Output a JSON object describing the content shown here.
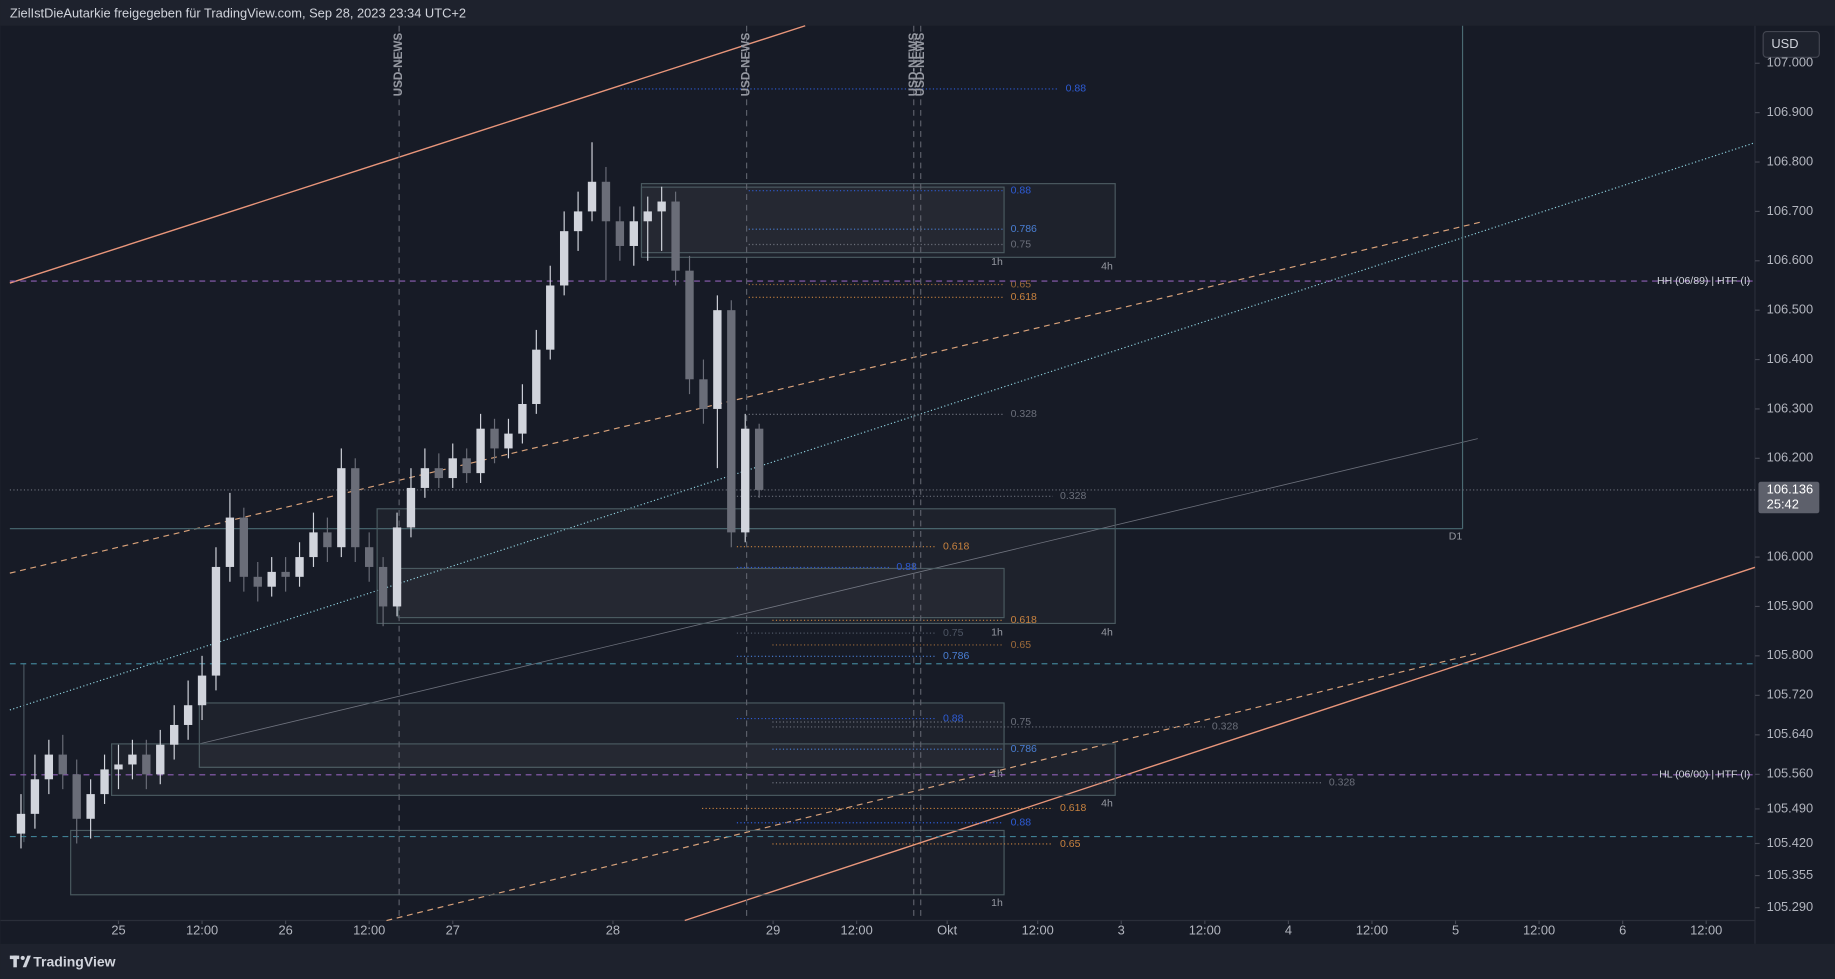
{
  "header": {
    "text": "ZielIstDieAutarkie freigegeben für TradingView.com, Sep 28, 2023 23:34 UTC+2"
  },
  "footer": {
    "brand": "TradingView"
  },
  "currency": "USD",
  "box_labels": [
    "1h",
    "4h",
    "1h",
    "4h",
    "1h",
    "4h",
    "1h",
    "D1"
  ],
  "chart_data": {
    "type": "candlestick",
    "x": [
      10,
      12,
      14,
      16,
      18,
      20,
      22,
      24,
      26,
      28,
      30,
      32,
      34,
      36,
      38,
      40,
      42,
      44,
      46,
      48,
      50,
      52,
      54,
      56,
      58,
      60,
      62,
      64,
      66,
      68,
      70,
      72,
      74,
      76,
      78,
      80,
      82,
      84,
      86,
      88,
      90,
      92,
      94,
      96,
      98,
      100,
      102,
      104,
      106,
      108,
      110,
      112,
      114,
      116
    ],
    "open": [
      105.44,
      105.48,
      105.55,
      105.6,
      105.56,
      105.47,
      105.52,
      105.57,
      105.58,
      105.6,
      105.56,
      105.62,
      105.66,
      105.7,
      105.76,
      105.98,
      106.08,
      105.96,
      105.94,
      105.97,
      105.96,
      106.0,
      106.05,
      106.02,
      106.18,
      106.02,
      105.98,
      105.9,
      106.06,
      106.14,
      106.18,
      106.16,
      106.2,
      106.17,
      106.26,
      106.22,
      106.25,
      106.31,
      106.42,
      106.55,
      106.66,
      106.7,
      106.76,
      106.68,
      106.63,
      106.68,
      106.7,
      106.72,
      106.58,
      106.36,
      106.3,
      106.5,
      106.05,
      106.26
    ],
    "high": [
      105.52,
      105.6,
      105.63,
      105.64,
      105.59,
      105.55,
      105.6,
      105.62,
      105.63,
      105.63,
      105.65,
      105.7,
      105.75,
      105.8,
      106.02,
      106.13,
      106.1,
      105.99,
      106.0,
      106.0,
      106.03,
      106.09,
      106.08,
      106.22,
      106.2,
      106.05,
      106.0,
      106.09,
      106.18,
      106.22,
      106.21,
      106.23,
      106.22,
      106.29,
      106.28,
      106.28,
      106.35,
      106.46,
      106.59,
      106.7,
      106.74,
      106.84,
      106.79,
      106.71,
      106.71,
      106.73,
      106.75,
      106.74,
      106.61,
      106.4,
      106.53,
      106.52,
      106.29,
      106.27
    ],
    "low": [
      105.41,
      105.45,
      105.52,
      105.53,
      105.42,
      105.43,
      105.5,
      105.53,
      105.55,
      105.53,
      105.54,
      105.59,
      105.63,
      105.67,
      105.73,
      105.95,
      105.93,
      105.91,
      105.92,
      105.93,
      105.94,
      105.98,
      105.99,
      106.0,
      105.99,
      105.95,
      105.86,
      105.88,
      106.04,
      106.12,
      106.14,
      106.14,
      106.15,
      106.15,
      106.19,
      106.2,
      106.23,
      106.29,
      106.4,
      106.53,
      106.62,
      106.68,
      106.56,
      106.6,
      106.59,
      106.6,
      106.62,
      106.55,
      106.33,
      106.27,
      106.18,
      106.02,
      106.03,
      106.12
    ],
    "close": [
      105.48,
      105.55,
      105.6,
      105.56,
      105.47,
      105.52,
      105.57,
      105.58,
      105.6,
      105.56,
      105.62,
      105.66,
      105.7,
      105.76,
      105.98,
      106.08,
      105.96,
      105.94,
      105.97,
      105.96,
      106.0,
      106.05,
      106.02,
      106.18,
      106.02,
      105.98,
      105.9,
      106.06,
      106.14,
      106.18,
      106.16,
      106.2,
      106.17,
      106.26,
      106.22,
      106.25,
      106.31,
      106.42,
      106.55,
      106.66,
      106.7,
      106.76,
      106.68,
      106.63,
      106.68,
      106.7,
      106.72,
      106.58,
      106.36,
      106.3,
      106.5,
      106.05,
      106.26,
      106.136
    ],
    "up_color": "#d1d4dc",
    "down_color": "#6a6d78",
    "xlim": [
      8.4,
      259
    ],
    "ylim": [
      105.264,
      107.076
    ],
    "xticks": [
      {
        "value": 24,
        "label": "25"
      },
      {
        "value": 36,
        "label": "12:00"
      },
      {
        "value": 48,
        "label": "26"
      },
      {
        "value": 60,
        "label": "12:00"
      },
      {
        "value": 72,
        "label": "27"
      },
      {
        "value": 95,
        "label": "28"
      },
      {
        "value": 118,
        "label": "29"
      },
      {
        "value": 130,
        "label": "12:00"
      },
      {
        "value": 143,
        "label": "Okt"
      },
      {
        "value": 156,
        "label": "12:00"
      },
      {
        "value": 168,
        "label": "3"
      },
      {
        "value": 180,
        "label": "12:00"
      },
      {
        "value": 192,
        "label": "4"
      },
      {
        "value": 204,
        "label": "12:00"
      },
      {
        "value": 216,
        "label": "5"
      },
      {
        "value": 228,
        "label": "12:00"
      },
      {
        "value": 240,
        "label": "6"
      },
      {
        "value": 252,
        "label": "12:00"
      }
    ],
    "yticks": [
      {
        "value": 107,
        "label": "107.000"
      },
      {
        "value": 106.9,
        "label": "106.900"
      },
      {
        "value": 106.8,
        "label": "106.800"
      },
      {
        "value": 106.7,
        "label": "106.700"
      },
      {
        "value": 106.6,
        "label": "106.600"
      },
      {
        "value": 106.5,
        "label": "106.500"
      },
      {
        "value": 106.4,
        "label": "106.400"
      },
      {
        "value": 106.3,
        "label": "106.300"
      },
      {
        "value": 106.2,
        "label": "106.200"
      },
      {
        "value": 106,
        "label": "106.000"
      },
      {
        "value": 105.9,
        "label": "105.900"
      },
      {
        "value": 105.8,
        "label": "105.800"
      },
      {
        "value": 105.72,
        "label": "105.720"
      },
      {
        "value": 105.64,
        "label": "105.640"
      },
      {
        "value": 105.56,
        "label": "105.560"
      },
      {
        "value": 105.49,
        "label": "105.490"
      },
      {
        "value": 105.42,
        "label": "105.420"
      },
      105.355,
      {
        "value": 105.29,
        "label": "105.290"
      }
    ],
    "grid": false,
    "last_price": 106.136,
    "countdown": "25:42",
    "news_events": [
      {
        "x": 64.3,
        "label": "USD-NEWS"
      },
      {
        "x": 114.2,
        "label": "USD-NEWS"
      },
      {
        "x": 138.2,
        "label": "USD-NEWS"
      },
      {
        "x": 139.2,
        "label": "USD-NEWS"
      }
    ],
    "levels": [
      {
        "price": 106.948,
        "label": "0.88",
        "from": 96.1,
        "to": 159.0,
        "color": "#2e5cd6",
        "style": "dotted"
      },
      {
        "price": 106.742,
        "label": "0.88",
        "from": 114.5,
        "to": 151.1,
        "color": "#2e5cd6",
        "style": "dotted"
      },
      {
        "price": 106.664,
        "label": "0.786",
        "from": 114.5,
        "to": 151.1,
        "color": "#4a7fd4",
        "style": "dotted"
      },
      {
        "price": 106.633,
        "label": "0.75",
        "from": 114.5,
        "to": 151.1,
        "color": "#6b6f7a",
        "style": "dotted"
      },
      {
        "price": 106.552,
        "label": "0.65",
        "from": 114.5,
        "to": 151.1,
        "color": "#9c6a3a",
        "style": "dotted"
      },
      {
        "price": 106.526,
        "label": "0.618",
        "from": 114.5,
        "to": 151.1,
        "color": "#c8823f",
        "style": "dotted"
      },
      {
        "price": 106.559,
        "label": "HH (06/89) | HTF (I)",
        "from": 8.4,
        "to": 259,
        "color": "#8e5fb5",
        "style": "dashed"
      },
      {
        "price": 106.289,
        "label": "0.328",
        "from": 114.5,
        "to": 151.1,
        "color": "#6b6f7a",
        "style": "dotted"
      },
      {
        "price": 106.123,
        "label": "0.328",
        "from": 112.8,
        "to": 158.2,
        "color": "#6b6f7a",
        "style": "dotted"
      },
      {
        "price": 106.021,
        "label": "0.618",
        "from": 112.8,
        "to": 141.4,
        "color": "#c8823f",
        "style": "dotted"
      },
      {
        "price": 105.979,
        "label": "0.88",
        "from": 112.8,
        "to": 134.7,
        "color": "#2e5cd6",
        "style": "dotted"
      },
      {
        "price": 105.872,
        "label": "0.618",
        "from": 117.9,
        "to": 151.1,
        "color": "#c8823f",
        "style": "dotted"
      },
      {
        "price": 105.846,
        "label": "0.75",
        "from": 112.8,
        "to": 141.4,
        "color": "#4d5563",
        "style": "dotted"
      },
      {
        "price": 105.822,
        "label": "0.65",
        "from": 117.9,
        "to": 151.1,
        "color": "#9c6a3a",
        "style": "dotted"
      },
      {
        "price": 105.799,
        "label": "0.786",
        "from": 112.8,
        "to": 141.4,
        "color": "#4a7fd4",
        "style": "dotted"
      },
      {
        "price": 105.673,
        "label": "0.88",
        "from": 112.8,
        "to": 141.4,
        "color": "#2e5cd6",
        "style": "dotted"
      },
      {
        "price": 105.666,
        "label": "0.75",
        "from": 117.9,
        "to": 151.1,
        "color": "#6b6f7a",
        "style": "dotted"
      },
      {
        "price": 105.656,
        "label": "0.328",
        "from": 117.9,
        "to": 180.0,
        "color": "#6b6f7a",
        "style": "dotted"
      },
      {
        "price": 105.611,
        "label": "0.786",
        "from": 117.9,
        "to": 151.1,
        "color": "#4a7fd4",
        "style": "dotted"
      },
      {
        "price": 105.559,
        "label": "HL (06/00) | HTF (I)",
        "from": 8.4,
        "to": 259,
        "color": "#8e5fb5",
        "style": "dashed"
      },
      {
        "price": 105.543,
        "label": "0.328",
        "from": 117.9,
        "to": 196.8,
        "color": "#6b6f7a",
        "style": "dotted"
      },
      {
        "price": 105.491,
        "label": "0.618",
        "from": 107.8,
        "to": 158.2,
        "color": "#c8823f",
        "style": "dotted"
      },
      {
        "price": 105.462,
        "label": "0.88",
        "from": 112.8,
        "to": 151.1,
        "color": "#2e5cd6",
        "style": "dotted"
      },
      {
        "price": 105.419,
        "label": "0.65",
        "from": 117.9,
        "to": 158.2,
        "color": "#c8823f",
        "style": "dotted"
      }
    ],
    "guides": [
      {
        "price": 105.784,
        "color": "#3f7f93"
      },
      {
        "price": 105.434,
        "color": "#3f7f93"
      }
    ]
  }
}
